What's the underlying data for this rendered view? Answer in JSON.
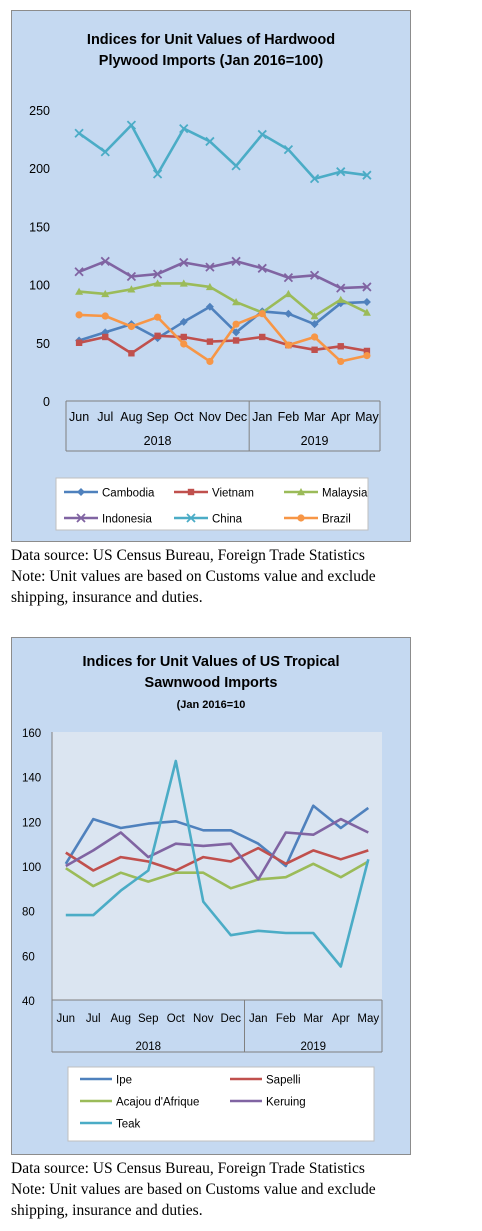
{
  "chart_data": [
    {
      "type": "line",
      "title": [
        "Indices for Unit Values of Hardwood",
        "Plywood Imports (Jan 2016=100)"
      ],
      "months": [
        "Jun",
        "Jul",
        "Aug",
        "Sep",
        "Oct",
        "Nov",
        "Dec",
        "Jan",
        "Feb",
        "Mar",
        "Apr",
        "May"
      ],
      "years": [
        "2018",
        "2019"
      ],
      "ylim": [
        0,
        250
      ],
      "yticks": [
        "0",
        "50",
        "100",
        "150",
        "200",
        "250"
      ],
      "grid": false,
      "legend_position": "bottom",
      "series": [
        {
          "name": "Cambodia",
          "color": "#4f81bd",
          "marker": "diamond",
          "values": [
            52,
            59,
            66,
            54,
            68,
            81,
            59,
            77,
            75,
            66,
            84,
            85
          ]
        },
        {
          "name": "Vietnam",
          "color": "#c0504d",
          "marker": "square",
          "values": [
            50,
            55,
            41,
            56,
            55,
            51,
            52,
            55,
            48,
            44,
            47,
            43
          ]
        },
        {
          "name": "Malaysia",
          "color": "#9bbb59",
          "marker": "triangle",
          "values": [
            94,
            92,
            96,
            101,
            101,
            98,
            85,
            76,
            92,
            73,
            87,
            76
          ]
        },
        {
          "name": "Indonesia",
          "color": "#8064a2",
          "marker": "x",
          "values": [
            111,
            120,
            107,
            109,
            119,
            115,
            120,
            114,
            106,
            108,
            97,
            98
          ]
        },
        {
          "name": "China",
          "color": "#4bacc6",
          "marker": "x",
          "values": [
            230,
            214,
            237,
            195,
            234,
            223,
            202,
            229,
            216,
            191,
            197,
            194
          ]
        },
        {
          "name": "Brazil",
          "color": "#f79646",
          "marker": "circle",
          "values": [
            74,
            73,
            64,
            72,
            49,
            34,
            66,
            75,
            48,
            55,
            34,
            39
          ]
        }
      ]
    },
    {
      "type": "line",
      "title": [
        "Indices for Unit Values of US Tropical",
        "Sawnwood Imports"
      ],
      "subtitle": "(Jan 2016=10",
      "months": [
        "Jun",
        "Jul",
        "Aug",
        "Sep",
        "Oct",
        "Nov",
        "Dec",
        "Jan",
        "Feb",
        "Mar",
        "Apr",
        "May"
      ],
      "years": [
        "2018",
        "2019"
      ],
      "ylim": [
        40,
        160
      ],
      "yticks": [
        "40",
        "60",
        "80",
        "100",
        "120",
        "140",
        "160"
      ],
      "grid": false,
      "legend_position": "bottom",
      "series": [
        {
          "name": "Ipe",
          "color": "#4f81bd",
          "values": [
            101,
            121,
            117,
            119,
            120,
            116,
            116,
            110,
            100,
            127,
            117,
            126
          ]
        },
        {
          "name": "Sapelli",
          "color": "#c0504d",
          "values": [
            106,
            98,
            104,
            102,
            98,
            104,
            102,
            108,
            101,
            107,
            103,
            107
          ]
        },
        {
          "name": "Acajou d'Afrique",
          "color": "#9bbb59",
          "values": [
            99,
            91,
            97,
            93,
            97,
            97,
            90,
            94,
            95,
            101,
            95,
            102
          ]
        },
        {
          "name": "Keruing",
          "color": "#8064a2",
          "values": [
            100,
            107,
            115,
            104,
            110,
            109,
            110,
            94,
            115,
            114,
            121,
            115
          ]
        },
        {
          "name": "Teak",
          "color": "#4bacc6",
          "values": [
            78,
            78,
            89,
            98,
            147,
            84,
            69,
            71,
            70,
            70,
            55,
            103
          ]
        }
      ]
    }
  ],
  "notes": [
    [
      "Data source: US Census Bureau, Foreign Trade Statistics",
      "Note: Unit values are based on Customs value and exclude",
      "shipping, insurance and duties."
    ],
    [
      "Data source: US Census Bureau, Foreign Trade Statistics",
      "Note: Unit values are based on Customs value and exclude",
      "shipping, insurance and duties."
    ]
  ]
}
